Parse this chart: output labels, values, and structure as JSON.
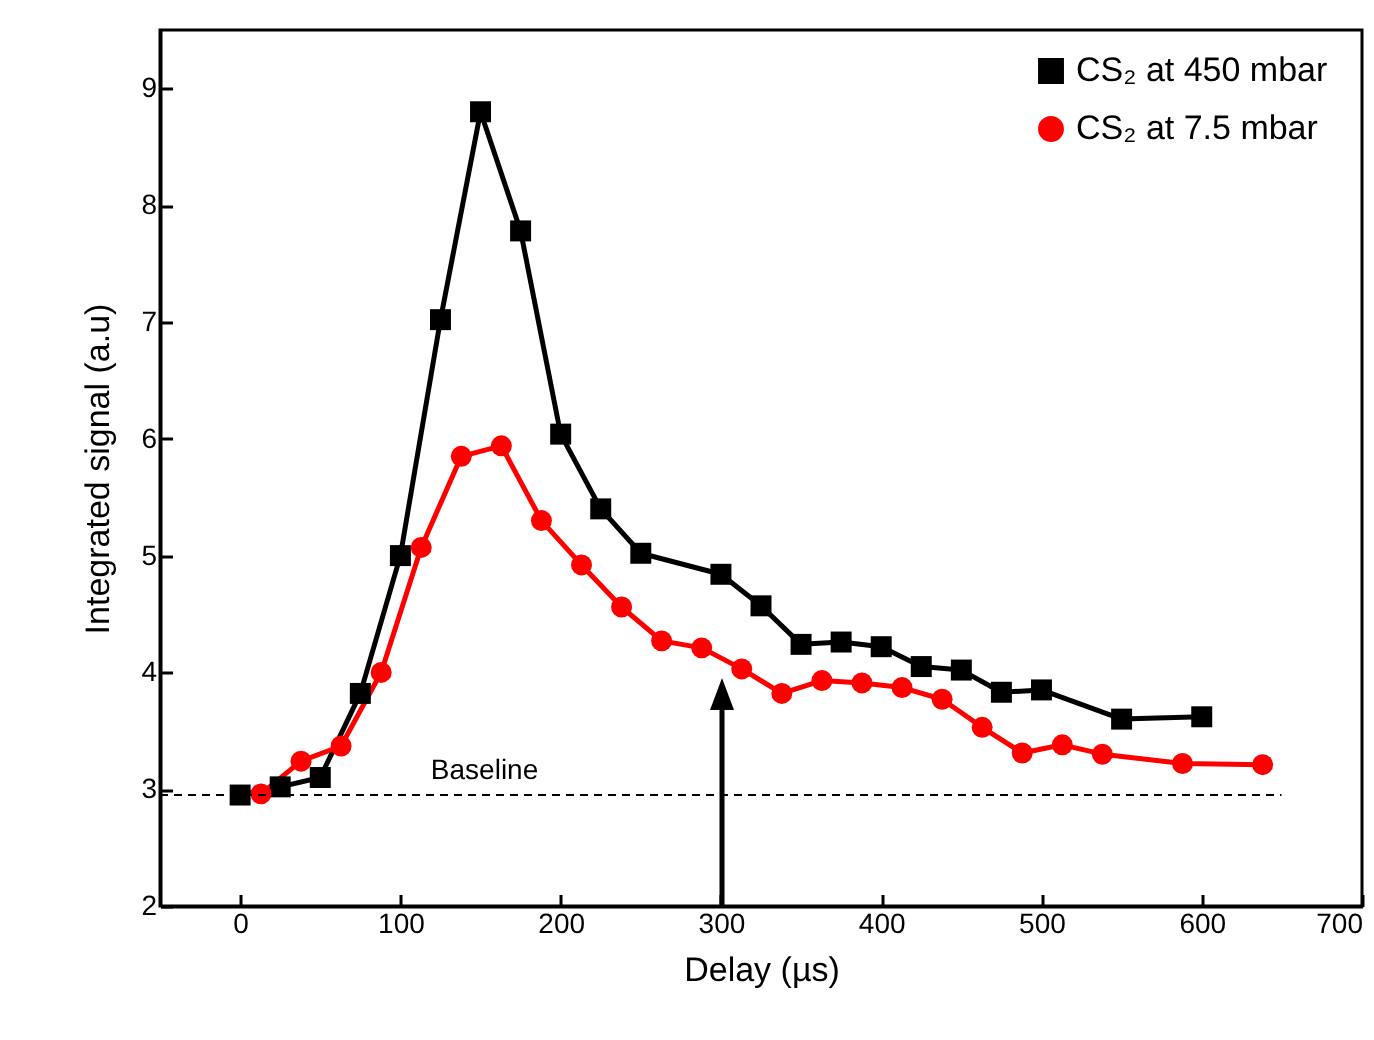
{
  "chart_data": {
    "type": "line",
    "xlabel": "Delay (µs)",
    "ylabel": "Integrated signal (a.u)",
    "xlim": [
      -50,
      700
    ],
    "xticks": [
      0,
      100,
      200,
      300,
      400,
      500,
      600,
      700
    ],
    "ylim": [
      2,
      9.5
    ],
    "yticks": [
      2,
      3,
      4,
      5,
      6,
      7,
      8,
      9
    ],
    "legend": "top right",
    "grid": false,
    "ref_lines": [
      {
        "axis": "y",
        "value": 2.95,
        "label": "Baseline",
        "line_style": "dashed",
        "color": "#000000"
      }
    ],
    "series": [
      {
        "name": "CS₂  at 450 mbar",
        "color": "#000000",
        "marker": "square",
        "x": [
          0,
          25,
          50,
          75,
          100,
          125,
          150,
          175,
          200,
          225,
          250,
          300,
          325,
          350,
          375,
          400,
          425,
          450,
          475,
          500,
          550,
          600
        ],
        "values": [
          2.95,
          3.02,
          3.1,
          3.82,
          5.0,
          7.02,
          8.8,
          7.78,
          6.04,
          5.4,
          5.02,
          4.84,
          4.57,
          4.24,
          4.26,
          4.22,
          4.05,
          4.02,
          3.83,
          3.85,
          3.6,
          3.62
        ]
      },
      {
        "name": "CS₂  at 7.5 mbar",
        "color": "#ff0000",
        "marker": "circle",
        "x": [
          13,
          38,
          63,
          88,
          113,
          138,
          163,
          188,
          213,
          238,
          263,
          288,
          313,
          338,
          363,
          388,
          413,
          438,
          463,
          488,
          513,
          538,
          588,
          638
        ],
        "values": [
          2.96,
          3.24,
          3.37,
          4.0,
          5.07,
          5.85,
          5.94,
          5.3,
          4.92,
          4.56,
          4.27,
          4.21,
          4.03,
          3.82,
          3.93,
          3.91,
          3.87,
          3.77,
          3.53,
          3.31,
          3.38,
          3.3,
          3.22,
          3.21
        ]
      }
    ]
  }
}
